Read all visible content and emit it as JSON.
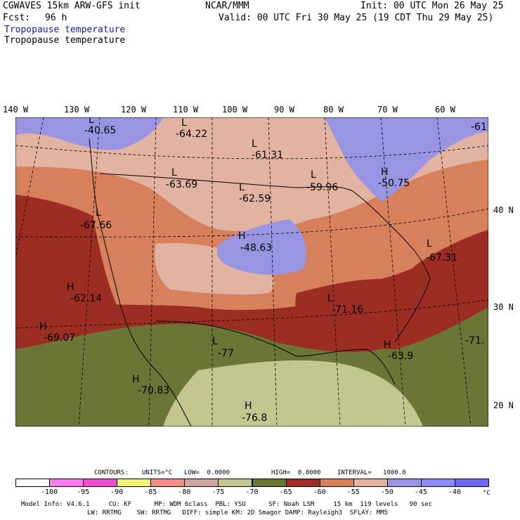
{
  "header": {
    "model_line": "CGWAVES 15km ARW-GFS init",
    "center": "NCAR/MMM",
    "init_time": "Init: 00 UTC Mon 26 May 25",
    "fcst_label": "Fcst:",
    "fcst_value": "96 h",
    "valid_time": "Valid: 00 UTC Fri 30 May 25 (19 CDT Thu 29 May 25)",
    "field_title_1": "Tropopause temperature",
    "field_title_2": "Tropopause temperature"
  },
  "axes": {
    "top_lon": [
      "140 W",
      "130 W",
      "120 W",
      "110 W",
      "100 W",
      "90 W",
      "80 W",
      "70 W",
      "60 W"
    ],
    "right_lat": [
      "40 N",
      "30 N",
      "20 N"
    ]
  },
  "map": {
    "highs": [
      {
        "label": "H",
        "value": "-50.75"
      },
      {
        "label": "H",
        "value": "-48.63"
      },
      {
        "label": "H",
        "value": "-62.14"
      },
      {
        "label": "H",
        "value": "-69.07"
      },
      {
        "label": "H",
        "value": "-70.83"
      },
      {
        "label": "H",
        "value": "-76.8"
      },
      {
        "label": "H",
        "value": "-63.9"
      }
    ],
    "lows": [
      {
        "label": "L",
        "value": "-40.65"
      },
      {
        "label": "L",
        "value": "-64.22"
      },
      {
        "label": "L",
        "value": "-61.31"
      },
      {
        "label": "L",
        "value": "-63.69"
      },
      {
        "label": "L",
        "value": "-62.59"
      },
      {
        "label": "L",
        "value": "-59.96"
      },
      {
        "label": "L",
        "value": "-67.66"
      },
      {
        "label": "L",
        "value": "-67.31"
      },
      {
        "label": "L",
        "value": "-71.16"
      },
      {
        "label": "L",
        "value": "-77"
      },
      {
        "label": "L",
        "value": "-71."
      },
      {
        "label": "L",
        "value": "-61"
      }
    ],
    "colors": {
      "c_lt_m40": "#7b79f0",
      "c_m45": "#9c9cf2",
      "c_m50": "#b7b2e4",
      "c_m55": "#e3b3a2",
      "c_m60": "#d9a088",
      "c_m65": "#d7805c",
      "c_m70": "#9b2d22",
      "c_m75": "#6f7437",
      "c_m80": "#c5c68d"
    }
  },
  "contours": {
    "label": "CONTOURS:",
    "units": "UNITS=°C",
    "low": "LOW=  0.0000",
    "high": "HIGH=  0.0000",
    "interval": "INTERVAL=   1000.0"
  },
  "colorbar": {
    "colors": [
      "#ffffff",
      "#ff7cf0",
      "#ee4fcf",
      "#f4f47a",
      "#f18e86",
      "#cfa7a0",
      "#c3c78f",
      "#6b7636",
      "#9b2d22",
      "#d7805c",
      "#e3b3a2",
      "#9a95e3",
      "#8b8bf2",
      "#6b6bf0"
    ],
    "labels": [
      "-100",
      "-95",
      "-90",
      "-85",
      "-80",
      "-75",
      "-70",
      "-65",
      "-60",
      "-55",
      "-50",
      "-45",
      "-40"
    ],
    "unit": "°C"
  },
  "footer": {
    "line1": "Model Info: V4.6.1     CU: KF      MP: WDM 6class  PBL: YSU      SF: Noah LSM     15 km  119 levels   90 sec",
    "line2": "LW: RRTMG    SW: RRTMG   DIFF: simple KM: 2D Smagor DAMP: Rayleigh3  SFLAY: MM5"
  }
}
